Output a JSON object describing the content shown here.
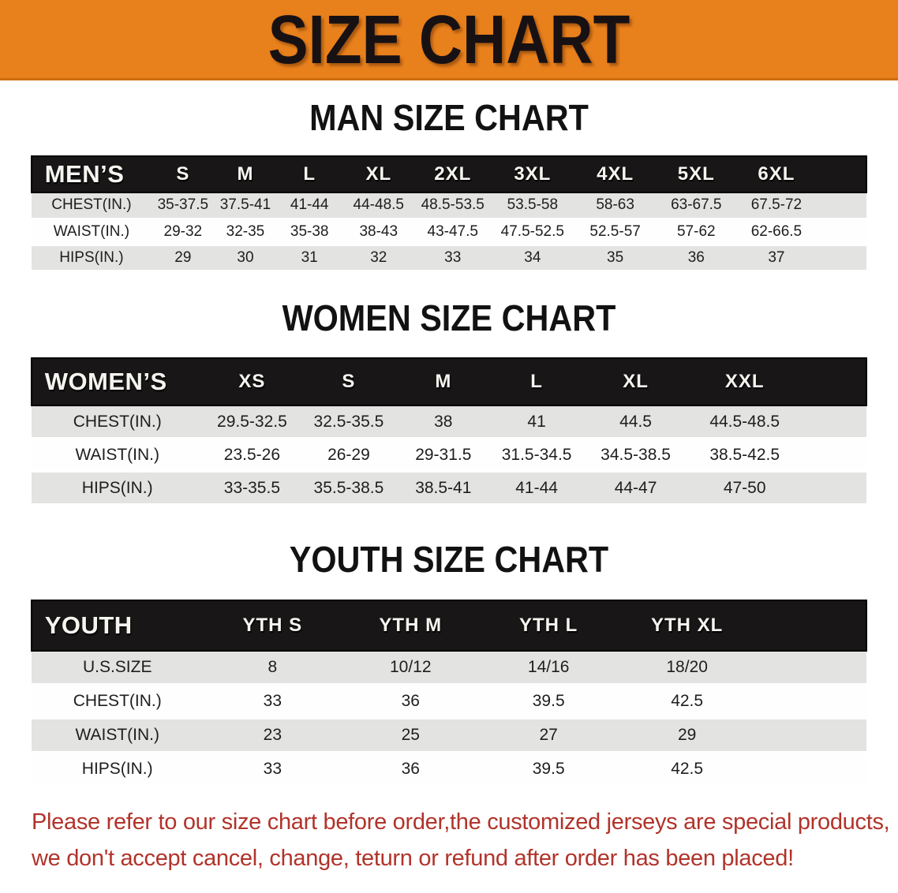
{
  "banner": {
    "title": "SIZE CHART"
  },
  "colors": {
    "banner_bg": "#E8801C",
    "table_header_bg": "#181616",
    "row_shade": "#E3E3E1",
    "disclaimer_text": "#B1332A"
  },
  "sections": [
    {
      "heading": "MAN SIZE CHART",
      "label": "MEN’S",
      "columns": [
        "S",
        "M",
        "L",
        "XL",
        "2XL",
        "3XL",
        "4XL",
        "5XL",
        "6XL"
      ],
      "rows": [
        {
          "label": "CHEST(IN.)",
          "values": [
            "35-37.5",
            "37.5-41",
            "41-44",
            "44-48.5",
            "48.5-53.5",
            "53.5-58",
            "58-63",
            "63-67.5",
            "67.5-72"
          ]
        },
        {
          "label": "WAIST(IN.)",
          "values": [
            "29-32",
            "32-35",
            "35-38",
            "38-43",
            "43-47.5",
            "47.5-52.5",
            "52.5-57",
            "57-62",
            "62-66.5"
          ]
        },
        {
          "label": "HIPS(IN.)",
          "values": [
            "29",
            "30",
            "31",
            "32",
            "33",
            "34",
            "35",
            "36",
            "37"
          ]
        }
      ]
    },
    {
      "heading": "WOMEN SIZE CHART",
      "label": "WOMEN’S",
      "columns": [
        "XS",
        "S",
        "M",
        "L",
        "XL",
        "XXL"
      ],
      "rows": [
        {
          "label": "CHEST(IN.)",
          "values": [
            "29.5-32.5",
            "32.5-35.5",
            "38",
            "41",
            "44.5",
            "44.5-48.5"
          ]
        },
        {
          "label": "WAIST(IN.)",
          "values": [
            "23.5-26",
            "26-29",
            "29-31.5",
            "31.5-34.5",
            "34.5-38.5",
            "38.5-42.5"
          ]
        },
        {
          "label": "HIPS(IN.)",
          "values": [
            "33-35.5",
            "35.5-38.5",
            "38.5-41",
            "41-44",
            "44-47",
            "47-50"
          ]
        }
      ]
    },
    {
      "heading": "YOUTH SIZE CHART",
      "label": "YOUTH",
      "columns": [
        "YTH S",
        "YTH M",
        "YTH L",
        "YTH XL"
      ],
      "rows": [
        {
          "label": "U.S.SIZE",
          "values": [
            "8",
            "10/12",
            "14/16",
            "18/20"
          ]
        },
        {
          "label": "CHEST(IN.)",
          "values": [
            "33",
            "36",
            "39.5",
            "42.5"
          ]
        },
        {
          "label": "WAIST(IN.)",
          "values": [
            "23",
            "25",
            "27",
            "29"
          ]
        },
        {
          "label": "HIPS(IN.)",
          "values": [
            "33",
            "36",
            "39.5",
            "42.5"
          ]
        }
      ]
    }
  ],
  "disclaimer": {
    "line1": "Please refer to our size chart before order,the customized jerseys are special products,",
    "line2": "we don't accept cancel, change, teturn or refund after order has been placed!"
  }
}
